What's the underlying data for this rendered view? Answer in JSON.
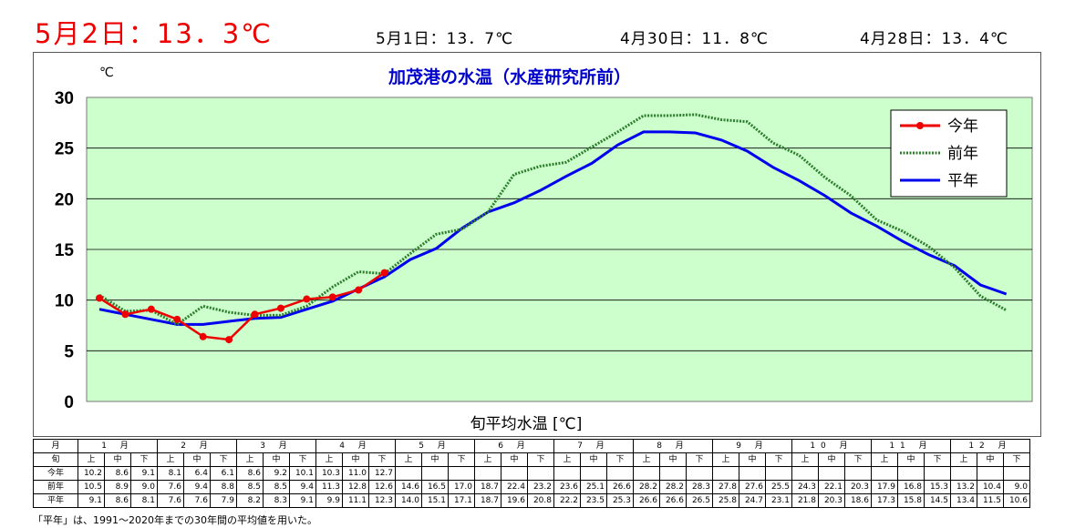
{
  "header": {
    "today": "5月2日：13．3℃",
    "prev1": "5月1日：13．7℃",
    "prev2": "4月30日：11．8℃",
    "prev3": "4月28日：13．4℃"
  },
  "colors": {
    "today": "#ee0000",
    "plot_bg": "#ccffcc",
    "current": "#ee0000",
    "previous": "#2e7d2e",
    "normal": "#0000ee",
    "title": "#0000cc"
  },
  "chart_data": {
    "type": "line",
    "title": "加茂港の水温（水産研究所前）",
    "unit": "℃",
    "xlabel": "旬平均水温 [℃]",
    "ylim": [
      0,
      30
    ],
    "yticks": [
      "0",
      "5",
      "10",
      "15",
      "20",
      "25",
      "30"
    ],
    "grid": true,
    "legend_position": "top-right",
    "periods": 36,
    "series": [
      {
        "name": "今年",
        "values": [
          10.2,
          8.6,
          9.1,
          8.1,
          6.4,
          6.1,
          8.6,
          9.2,
          10.1,
          10.3,
          11.0,
          12.7
        ]
      },
      {
        "name": "前年",
        "values": [
          10.5,
          8.9,
          9.0,
          7.6,
          9.4,
          8.8,
          8.5,
          8.5,
          9.4,
          11.3,
          12.8,
          12.6,
          14.6,
          16.5,
          17.0,
          18.7,
          22.4,
          23.2,
          23.6,
          25.1,
          26.6,
          28.2,
          28.2,
          28.3,
          27.8,
          27.6,
          25.5,
          24.3,
          22.1,
          20.3,
          17.9,
          16.8,
          15.3,
          13.2,
          10.4,
          9.0
        ]
      },
      {
        "name": "平年",
        "values": [
          9.1,
          8.6,
          8.1,
          7.6,
          7.6,
          7.9,
          8.2,
          8.3,
          9.1,
          9.9,
          11.1,
          12.3,
          14.0,
          15.1,
          17.1,
          18.7,
          19.6,
          20.8,
          22.2,
          23.5,
          25.3,
          26.6,
          26.6,
          26.5,
          25.8,
          24.7,
          23.1,
          21.8,
          20.3,
          18.6,
          17.3,
          15.8,
          14.5,
          13.4,
          11.5,
          10.6
        ]
      }
    ]
  },
  "table": {
    "month_label": "月",
    "jun_label": "旬",
    "months": [
      "1 月",
      "2 月",
      "3 月",
      "4 月",
      "5 月",
      "6 月",
      "7 月",
      "8 月",
      "9 月",
      "10 月",
      "11 月",
      "12 月"
    ],
    "juns": [
      "上",
      "中",
      "下"
    ],
    "rows": [
      {
        "label": "今年",
        "values": [
          "10.2",
          "8.6",
          "9.1",
          "8.1",
          "6.4",
          "6.1",
          "8.6",
          "9.2",
          "10.1",
          "10.3",
          "11.0",
          "12.7",
          "",
          "",
          "",
          "",
          "",
          "",
          "",
          "",
          "",
          "",
          "",
          "",
          "",
          "",
          "",
          "",
          "",
          "",
          "",
          "",
          "",
          "",
          "",
          ""
        ]
      },
      {
        "label": "前年",
        "values": [
          "10.5",
          "8.9",
          "9.0",
          "7.6",
          "9.4",
          "8.8",
          "8.5",
          "8.5",
          "9.4",
          "11.3",
          "12.8",
          "12.6",
          "14.6",
          "16.5",
          "17.0",
          "18.7",
          "22.4",
          "23.2",
          "23.6",
          "25.1",
          "26.6",
          "28.2",
          "28.2",
          "28.3",
          "27.8",
          "27.6",
          "25.5",
          "24.3",
          "22.1",
          "20.3",
          "17.9",
          "16.8",
          "15.3",
          "13.2",
          "10.4",
          "9.0"
        ]
      },
      {
        "label": "平年",
        "values": [
          "9.1",
          "8.6",
          "8.1",
          "7.6",
          "7.6",
          "7.9",
          "8.2",
          "8.3",
          "9.1",
          "9.9",
          "11.1",
          "12.3",
          "14.0",
          "15.1",
          "17.1",
          "18.7",
          "19.6",
          "20.8",
          "22.2",
          "23.5",
          "25.3",
          "26.6",
          "26.6",
          "26.5",
          "25.8",
          "24.7",
          "23.1",
          "21.8",
          "20.3",
          "18.6",
          "17.3",
          "15.8",
          "14.5",
          "13.4",
          "11.5",
          "10.6"
        ]
      }
    ]
  },
  "footnote": "「平年」は、1991～2020年までの30年間の平均値を用いた。"
}
